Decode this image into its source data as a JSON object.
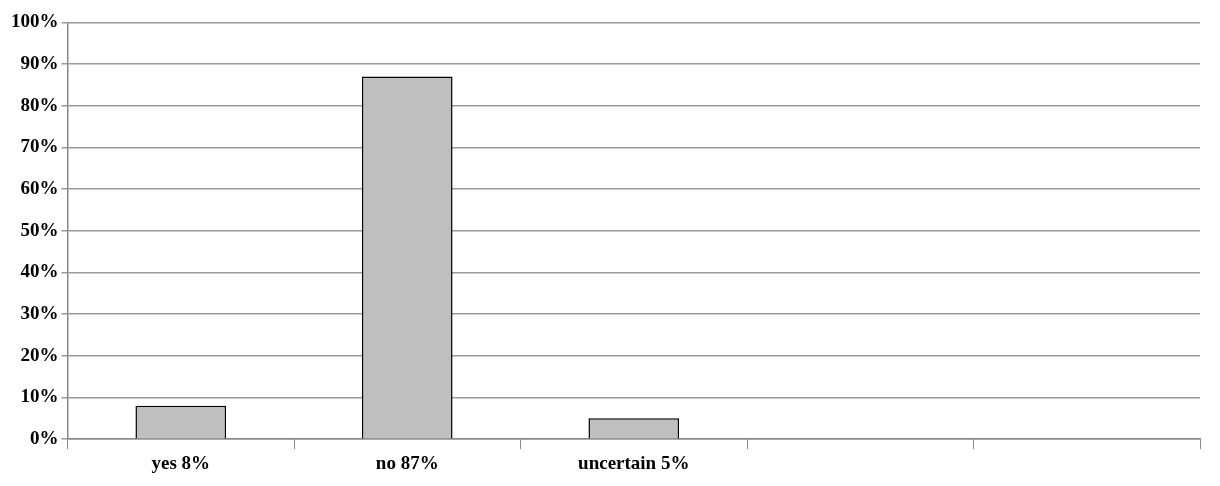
{
  "chart_data": {
    "type": "bar",
    "categories": [
      "yes 8%",
      "no 87%",
      "uncertain 5%",
      null,
      null
    ],
    "values": [
      8,
      87,
      5,
      null,
      null
    ],
    "color": "#bfbfbf",
    "ylim": [
      0,
      100
    ],
    "yticks": [
      {
        "value": 0,
        "label": "0%"
      },
      {
        "value": 10,
        "label": "10%"
      },
      {
        "value": 20,
        "label": "20%"
      },
      {
        "value": 30,
        "label": "30%"
      },
      {
        "value": 40,
        "label": "40%"
      },
      {
        "value": 50,
        "label": "50%"
      },
      {
        "value": 60,
        "label": "60%"
      },
      {
        "value": 70,
        "label": "70%"
      },
      {
        "value": 80,
        "label": "80%"
      },
      {
        "value": 90,
        "label": "90%"
      },
      {
        "value": 100,
        "label": "100%"
      }
    ],
    "grid": "y"
  }
}
